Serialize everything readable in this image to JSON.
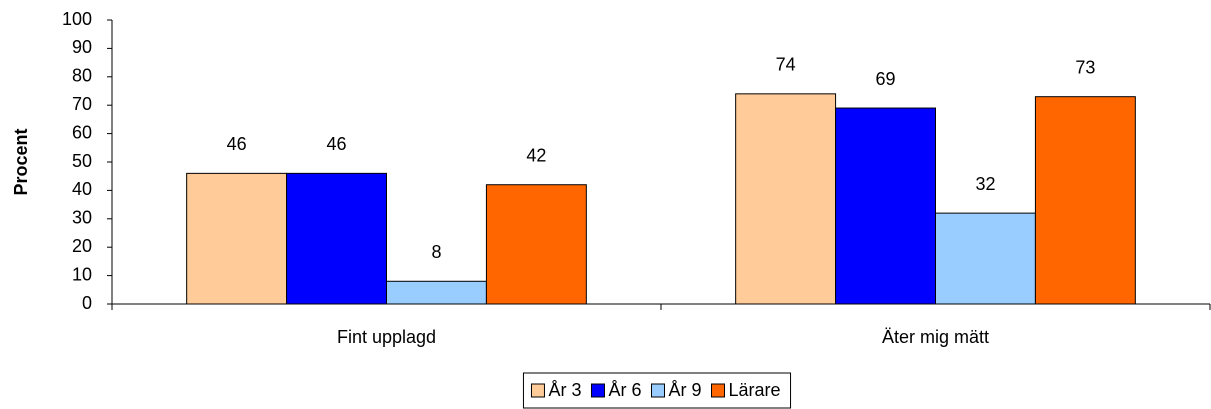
{
  "chart_data": {
    "type": "bar",
    "y_label": "Procent",
    "categories": [
      "Fint upplagd",
      "Äter mig mätt"
    ],
    "series": [
      {
        "name": "År 3",
        "color": "#ffcc99",
        "values": [
          46,
          74
        ]
      },
      {
        "name": "År 6",
        "color": "#0000ff",
        "values": [
          46,
          69
        ]
      },
      {
        "name": "År 9",
        "color": "#99ccff",
        "values": [
          8,
          32
        ]
      },
      {
        "name": "Lärare",
        "color": "#ff6600",
        "values": [
          42,
          73
        ]
      }
    ],
    "ylim": [
      0,
      100
    ],
    "yticks": [
      0,
      10,
      20,
      30,
      40,
      50,
      60,
      70,
      80,
      90,
      100
    ],
    "grid": false,
    "legend": "bottom"
  }
}
